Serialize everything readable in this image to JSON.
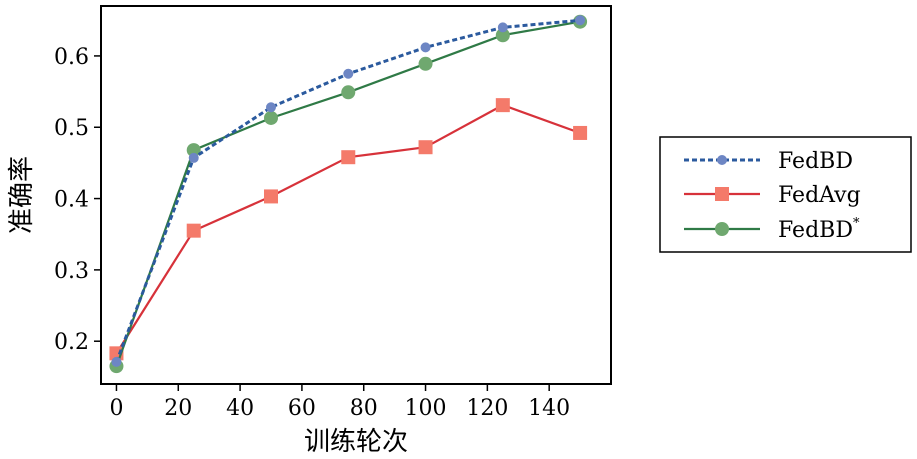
{
  "chart_data": {
    "type": "line",
    "xlabel": "训练轮次",
    "ylabel": "准确率",
    "xlim": [
      -5,
      160
    ],
    "ylim": [
      0.14,
      0.67
    ],
    "xticks": [
      0,
      20,
      40,
      60,
      80,
      100,
      120,
      140
    ],
    "yticks": [
      0.2,
      0.3,
      0.4,
      0.5,
      0.6
    ],
    "x": [
      0,
      25,
      50,
      75,
      100,
      125,
      150
    ],
    "grid": false,
    "legend_position": "right",
    "series": [
      {
        "name": "FedBD",
        "values": [
          0.171,
          0.457,
          0.528,
          0.575,
          0.612,
          0.64,
          0.65
        ],
        "color": "#2b5a9e",
        "marker_color": "#6d86c4",
        "line_style": "dashed",
        "marker": "circle-small"
      },
      {
        "name": "FedAvg",
        "values": [
          0.183,
          0.355,
          0.403,
          0.458,
          0.472,
          0.531,
          0.492
        ],
        "color": "#d7323a",
        "marker_color": "#f47a6a",
        "line_style": "solid",
        "marker": "square"
      },
      {
        "name": "FedBD",
        "name_superscript": "*",
        "values": [
          0.165,
          0.468,
          0.513,
          0.549,
          0.589,
          0.629,
          0.648
        ],
        "color": "#2f7a46",
        "marker_color": "#6fa86f",
        "line_style": "solid",
        "marker": "circle"
      }
    ]
  }
}
